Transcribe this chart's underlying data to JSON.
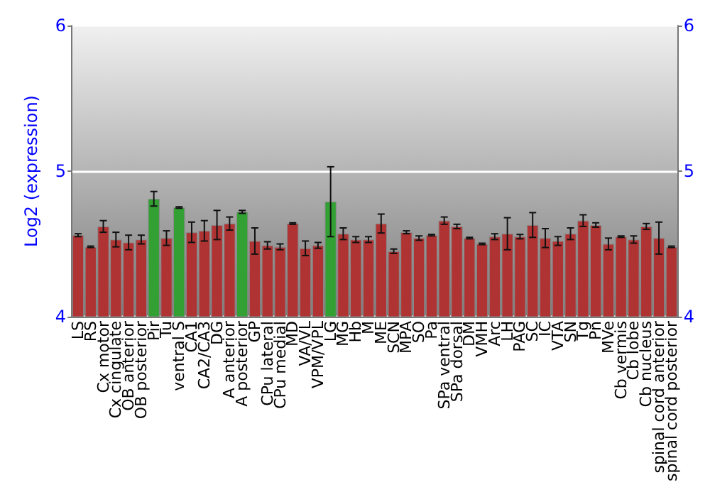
{
  "chart_data": {
    "type": "bar",
    "ylabel": "Log2 (expression)",
    "categories": [
      "LS",
      "RS",
      "Cx motor",
      "Cx cingulate",
      "OB anterior",
      "OB posterior",
      "Pir",
      "Tu",
      "ventral S",
      "CA1",
      "CA2/CA3",
      "DG",
      "A anterior",
      "A posterior",
      "GP",
      "CPu lateral",
      "CPu medial",
      "MD",
      "VA/VL",
      "VPM/VPL",
      "LG",
      "MG",
      "Hb",
      "M",
      "ME",
      "SCN",
      "MPA",
      "SO",
      "Pa",
      "SPa ventral",
      "SPa dorsal",
      "DM",
      "VMH",
      "Arc",
      "LH",
      "PAG",
      "SC",
      "IC",
      "VTA",
      "SN",
      "Tg",
      "Pn",
      "MVe",
      "Cb vermis",
      "Cb lobe",
      "Cb nucleus",
      "spinal cord anterior",
      "spinal cord posterior"
    ],
    "values": [
      4.56,
      4.48,
      4.62,
      4.53,
      4.51,
      4.53,
      4.81,
      4.54,
      4.75,
      4.58,
      4.59,
      4.63,
      4.64,
      4.72,
      4.52,
      4.49,
      4.48,
      4.64,
      4.47,
      4.49,
      4.79,
      4.57,
      4.53,
      4.53,
      4.64,
      4.45,
      4.58,
      4.54,
      4.56,
      4.66,
      4.62,
      4.54,
      4.5,
      4.55,
      4.57,
      4.55,
      4.63,
      4.54,
      4.52,
      4.57,
      4.66,
      4.63,
      4.5,
      4.55,
      4.53,
      4.62,
      4.54,
      4.48
    ],
    "errors": [
      0.01,
      0.005,
      0.04,
      0.05,
      0.05,
      0.03,
      0.05,
      0.05,
      0.005,
      0.07,
      0.07,
      0.1,
      0.045,
      0.01,
      0.09,
      0.025,
      0.02,
      0.005,
      0.05,
      0.02,
      0.24,
      0.04,
      0.02,
      0.02,
      0.065,
      0.015,
      0.01,
      0.015,
      0.005,
      0.025,
      0.015,
      0.005,
      0.005,
      0.02,
      0.11,
      0.015,
      0.085,
      0.065,
      0.03,
      0.04,
      0.04,
      0.015,
      0.04,
      0.005,
      0.025,
      0.02,
      0.11,
      0.005
    ],
    "colors": [
      "#b03333",
      "#b03333",
      "#b03333",
      "#b03333",
      "#b03333",
      "#b03333",
      "#33a033",
      "#b03333",
      "#33a033",
      "#b03333",
      "#b03333",
      "#b03333",
      "#b03333",
      "#33a033",
      "#b03333",
      "#b03333",
      "#b03333",
      "#b03333",
      "#b03333",
      "#b03333",
      "#33a033",
      "#b03333",
      "#b03333",
      "#b03333",
      "#b03333",
      "#b03333",
      "#b03333",
      "#b03333",
      "#b03333",
      "#b03333",
      "#b03333",
      "#b03333",
      "#b03333",
      "#b03333",
      "#b03333",
      "#b03333",
      "#b03333",
      "#b03333",
      "#b03333",
      "#b03333",
      "#b03333",
      "#b03333",
      "#b03333",
      "#b03333",
      "#b03333",
      "#b03333",
      "#b03333",
      "#b03333"
    ],
    "ylim": [
      4,
      6
    ],
    "yticks": [
      4,
      5,
      6
    ],
    "y2lim": [
      4,
      6
    ],
    "y2ticks": [
      4,
      5,
      6
    ],
    "grid": "y"
  }
}
